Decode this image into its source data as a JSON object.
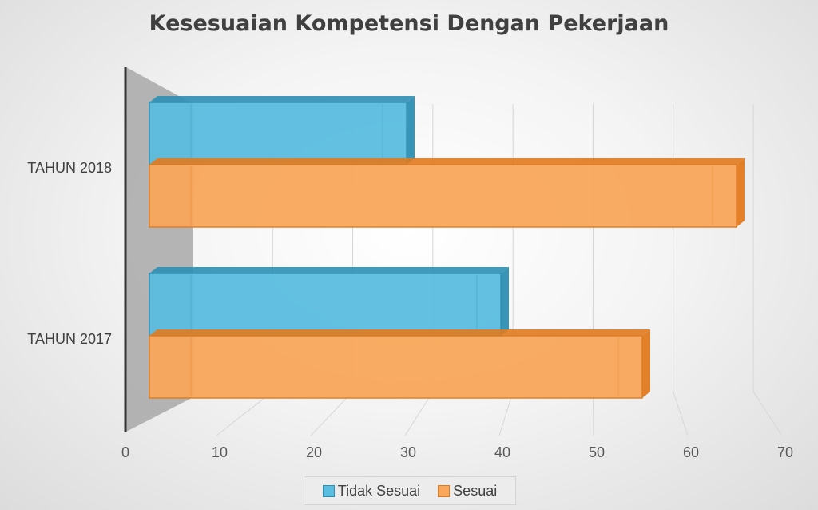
{
  "chart_data": {
    "type": "bar",
    "orientation": "horizontal",
    "style": "3d",
    "title": "Kesesuaian Kompetensi Dengan Pekerjaan",
    "xlabel": "",
    "ylabel": "",
    "categories": [
      "TAHUN 2017",
      "TAHUN 2018"
    ],
    "series": [
      {
        "name": "Tidak Sesuai",
        "values": [
          40,
          30
        ],
        "color": "#5bbde0",
        "edge": "#2e8fb3"
      },
      {
        "name": "Sesuai",
        "values": [
          55,
          65
        ],
        "color": "#f9a75b",
        "edge": "#e07a1f"
      }
    ],
    "xlim": [
      0,
      70
    ],
    "xticks": [
      0,
      10,
      20,
      30,
      40,
      50,
      60,
      70
    ],
    "grid": true,
    "legend_position": "bottom"
  }
}
